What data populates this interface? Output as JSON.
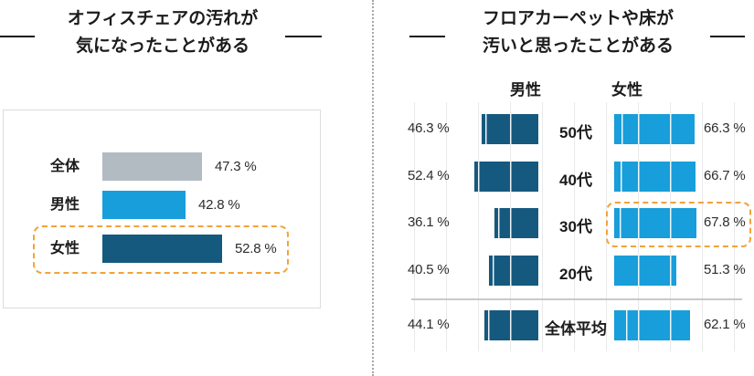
{
  "colors": {
    "dark_navy": "#15597F",
    "light_blue": "#189EDA",
    "gray_bar": "#B2BAC2",
    "highlight_orange": "#F1A33B",
    "grid": "#E9E9E9",
    "separator": "#C9C9C9",
    "panel_border": "#DCDCDC",
    "title_text": "#1B1B1B",
    "value_text": "#2D2D2D"
  },
  "left_panel": {
    "title_line1": "オフィスチェアの汚れが",
    "title_line2": "気になったことがある",
    "rows": [
      {
        "label": "全体",
        "value": "47.3 %"
      },
      {
        "label": "男性",
        "value": "42.8 %"
      },
      {
        "label": "女性",
        "value": "52.8 %"
      }
    ],
    "highlighted_row": "女性"
  },
  "right_panel": {
    "title_line1": "フロアカーペットや床が",
    "title_line2": "汚いと思ったことがある",
    "col_left": "男性",
    "col_right": "女性",
    "rows": [
      {
        "label": "50代",
        "male": "46.3 %",
        "female": "66.3 %"
      },
      {
        "label": "40代",
        "male": "52.4 %",
        "female": "66.7 %"
      },
      {
        "label": "30代",
        "male": "36.1 %",
        "female": "67.8 %"
      },
      {
        "label": "20代",
        "male": "40.5 %",
        "female": "51.3 %"
      },
      {
        "label": "全体平均",
        "male": "44.1 %",
        "female": "62.1 %"
      }
    ],
    "highlighted_cell": "30代 女性"
  },
  "chart_data": [
    {
      "type": "bar",
      "orientation": "horizontal",
      "title": "オフィスチェアの汚れが気になったことがある",
      "categories": [
        "全体",
        "男性",
        "女性"
      ],
      "values": [
        47.3,
        42.8,
        52.8
      ],
      "unit": "%",
      "bar_colors": [
        "#B2BAC2",
        "#189EDA",
        "#15597F"
      ],
      "highlight": {
        "category": "女性",
        "style": "orange-dashed-outline"
      },
      "grid": false,
      "value_labels": "outside-right"
    },
    {
      "type": "bar",
      "subtype": "butterfly",
      "title": "フロアカーペットや床が汚いと思ったことがある",
      "categories": [
        "50代",
        "40代",
        "30代",
        "20代",
        "全体平均"
      ],
      "series": [
        {
          "name": "男性",
          "color": "#15597F",
          "side": "left",
          "values": [
            46.3,
            52.4,
            36.1,
            40.5,
            44.1
          ]
        },
        {
          "name": "女性",
          "color": "#189EDA",
          "side": "right",
          "values": [
            66.3,
            66.7,
            67.8,
            51.3,
            62.1
          ]
        }
      ],
      "unit": "%",
      "highlight": {
        "category": "30代",
        "series": "女性",
        "style": "orange-dashed-outline"
      },
      "grid": true,
      "legend_position": "top",
      "separator_before_category": "全体平均",
      "value_labels": "outside"
    }
  ]
}
